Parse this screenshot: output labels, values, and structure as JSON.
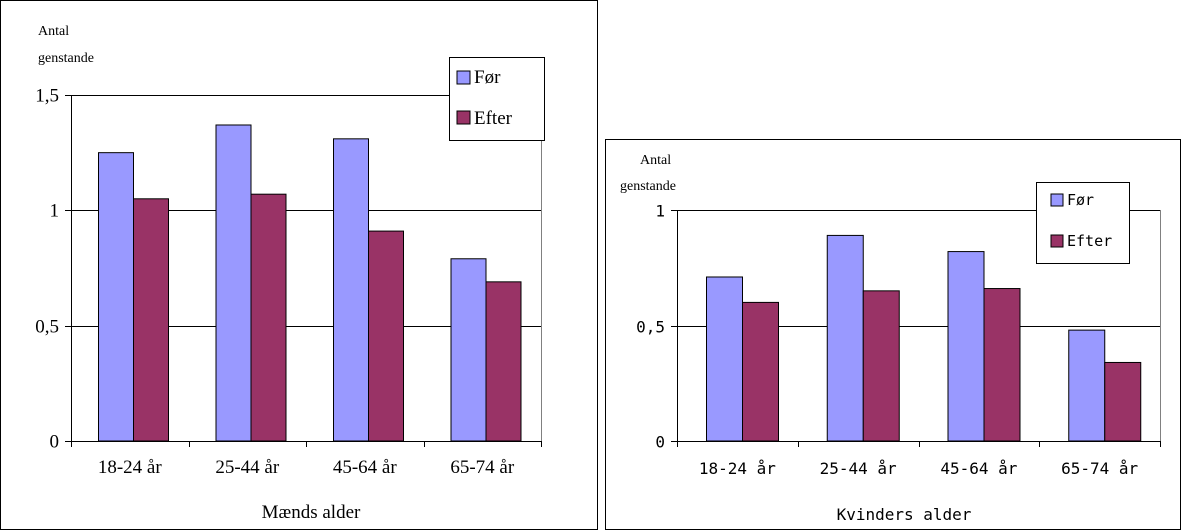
{
  "colors": {
    "before": "#9999FF",
    "after": "#993366",
    "grid": "#000000",
    "border": "#000000"
  },
  "chart_data": [
    {
      "type": "bar",
      "title": "",
      "ylabel_line1": "Antal",
      "ylabel_line2": "genstande",
      "xlabel": "Mænds alder",
      "categories": [
        "18-24 år",
        "25-44 år",
        "45-64 år",
        "65-74 år"
      ],
      "series": [
        {
          "name": "Før",
          "values": [
            1.25,
            1.37,
            1.31,
            0.79
          ]
        },
        {
          "name": "Efter",
          "values": [
            1.05,
            1.07,
            0.91,
            0.69
          ]
        }
      ],
      "ylim": [
        0,
        1.5
      ],
      "yticks": [
        "0",
        "0,5",
        "1",
        "1,5"
      ],
      "ytick_values": [
        0,
        0.5,
        1,
        1.5
      ],
      "grid": true,
      "legend_position": "top-right"
    },
    {
      "type": "bar",
      "title": "",
      "ylabel_line1": "Antal",
      "ylabel_line2": "genstande",
      "xlabel": "Kvinders alder",
      "categories": [
        "18-24 år",
        "25-44 år",
        "45-64 år",
        "65-74 år"
      ],
      "series": [
        {
          "name": "Før",
          "values": [
            0.71,
            0.89,
            0.82,
            0.48
          ]
        },
        {
          "name": "Efter",
          "values": [
            0.6,
            0.65,
            0.66,
            0.34
          ]
        }
      ],
      "ylim": [
        0,
        1
      ],
      "yticks": [
        "0",
        "0,5",
        "1"
      ],
      "ytick_values": [
        0,
        0.5,
        1
      ],
      "grid": true,
      "legend_position": "top-right"
    }
  ]
}
